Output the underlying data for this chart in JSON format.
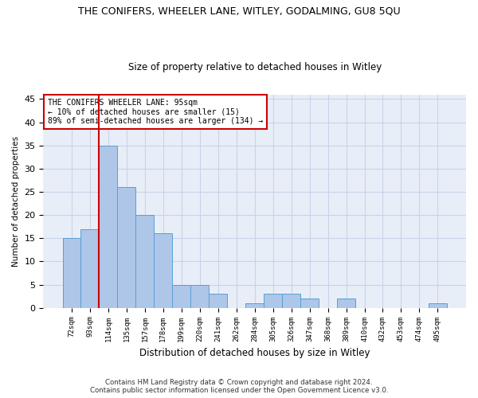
{
  "title_line1": "THE CONIFERS, WHEELER LANE, WITLEY, GODALMING, GU8 5QU",
  "title_line2": "Size of property relative to detached houses in Witley",
  "xlabel": "Distribution of detached houses by size in Witley",
  "ylabel": "Number of detached properties",
  "categories": [
    "72sqm",
    "93sqm",
    "114sqm",
    "135sqm",
    "157sqm",
    "178sqm",
    "199sqm",
    "220sqm",
    "241sqm",
    "262sqm",
    "284sqm",
    "305sqm",
    "326sqm",
    "347sqm",
    "368sqm",
    "389sqm",
    "410sqm",
    "432sqm",
    "453sqm",
    "474sqm",
    "495sqm"
  ],
  "values": [
    15,
    17,
    35,
    26,
    20,
    16,
    5,
    5,
    3,
    0,
    1,
    3,
    3,
    2,
    0,
    2,
    0,
    0,
    0,
    0,
    1
  ],
  "bar_color": "#aec6e8",
  "bar_edge_color": "#5a9fd4",
  "grid_color": "#c8d4e8",
  "background_color": "#e8eef8",
  "vline_x": 1.5,
  "vline_color": "#cc0000",
  "annotation_title": "THE CONIFERS WHEELER LANE: 95sqm",
  "annotation_line1": "← 10% of detached houses are smaller (15)",
  "annotation_line2": "89% of semi-detached houses are larger (134) →",
  "annotation_box_color": "#cc0000",
  "ylim": [
    0,
    46
  ],
  "yticks": [
    0,
    5,
    10,
    15,
    20,
    25,
    30,
    35,
    40,
    45
  ],
  "footer_line1": "Contains HM Land Registry data © Crown copyright and database right 2024.",
  "footer_line2": "Contains public sector information licensed under the Open Government Licence v3.0."
}
